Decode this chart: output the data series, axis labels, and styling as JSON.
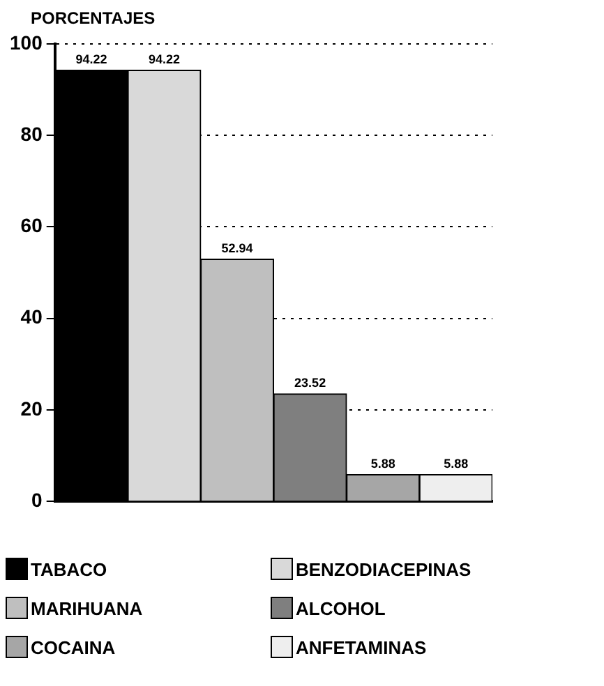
{
  "chart_data": {
    "type": "bar",
    "ylabel": "PORCENTAJES",
    "categories": [
      null,
      null,
      null,
      null,
      null,
      null
    ],
    "series": [
      {
        "name": "TABACO",
        "color": "#000000",
        "values": [
          94.22,
          null,
          null,
          null,
          null,
          null
        ]
      },
      {
        "name": "BENZODIACEPINAS",
        "color": "#d9d9d9",
        "values": [
          null,
          94.22,
          null,
          null,
          null,
          null
        ]
      },
      {
        "name": "MARIHUANA",
        "color": "#bfbfbf",
        "values": [
          null,
          null,
          52.94,
          null,
          null,
          null
        ]
      },
      {
        "name": "ALCOHOL",
        "color": "#7f7f7f",
        "values": [
          null,
          null,
          null,
          23.52,
          null,
          null
        ]
      },
      {
        "name": "COCAINA",
        "color": "#a6a6a6",
        "values": [
          null,
          null,
          null,
          null,
          5.88,
          null
        ]
      },
      {
        "name": "ANFETAMINAS",
        "color": "#eeeeee",
        "values": [
          null,
          null,
          null,
          null,
          null,
          5.88
        ]
      }
    ],
    "ylim": [
      0,
      100
    ],
    "yticks": [
      0,
      20,
      40,
      60,
      80,
      100
    ],
    "grid": "y",
    "line_style": "dotted",
    "data_labels": true,
    "legend": "bottom"
  }
}
